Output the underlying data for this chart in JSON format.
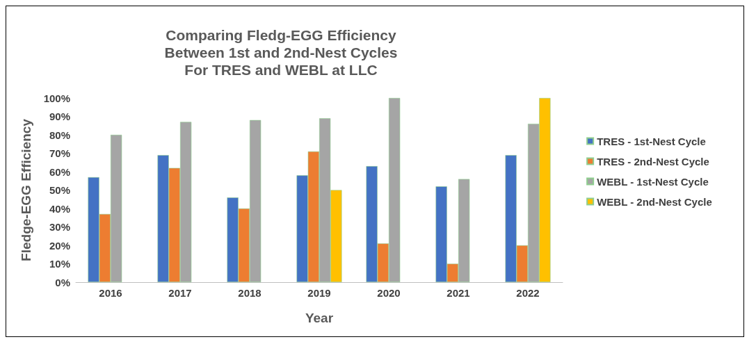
{
  "chart_data": {
    "type": "bar",
    "title": "Comparing Fledg-EGG Efficiency\nBetween 1st and 2nd-Nest Cycles\nFor TRES and WEBL at LLC",
    "xlabel": "Year",
    "ylabel": "Fledge-EGG Efficiency",
    "categories": [
      "2016",
      "2017",
      "2018",
      "2019",
      "2020",
      "2021",
      "2022"
    ],
    "series": [
      {
        "name": "TRES - 1st-Nest Cycle",
        "color": "#4472c4",
        "values": [
          57,
          69,
          46,
          58,
          63,
          52,
          69
        ]
      },
      {
        "name": "TRES - 2nd-Nest Cycle",
        "color": "#ed7d31",
        "values": [
          37,
          62,
          40,
          71,
          21,
          10,
          20
        ]
      },
      {
        "name": "WEBL - 1st-Nest Cycle",
        "color": "#a5a5a5",
        "values": [
          80,
          87,
          88,
          89,
          100,
          56,
          86
        ]
      },
      {
        "name": "WEBL - 2nd-Nest Cycle",
        "color": "#ffc000",
        "values": [
          null,
          null,
          null,
          50,
          null,
          null,
          100
        ]
      }
    ],
    "ylim": [
      0,
      100
    ],
    "yticks": [
      {
        "value": 0,
        "label": "0%"
      },
      {
        "value": 10,
        "label": "10%"
      },
      {
        "value": 20,
        "label": "20%"
      },
      {
        "value": 30,
        "label": "30%"
      },
      {
        "value": 40,
        "label": "40%"
      },
      {
        "value": 50,
        "label": "50%"
      },
      {
        "value": 60,
        "label": "60%"
      },
      {
        "value": 70,
        "label": "70%"
      },
      {
        "value": 80,
        "label": "80%"
      },
      {
        "value": 90,
        "label": "90%"
      },
      {
        "value": 100,
        "label": "100%"
      }
    ],
    "grid": false,
    "legend": "right"
  }
}
